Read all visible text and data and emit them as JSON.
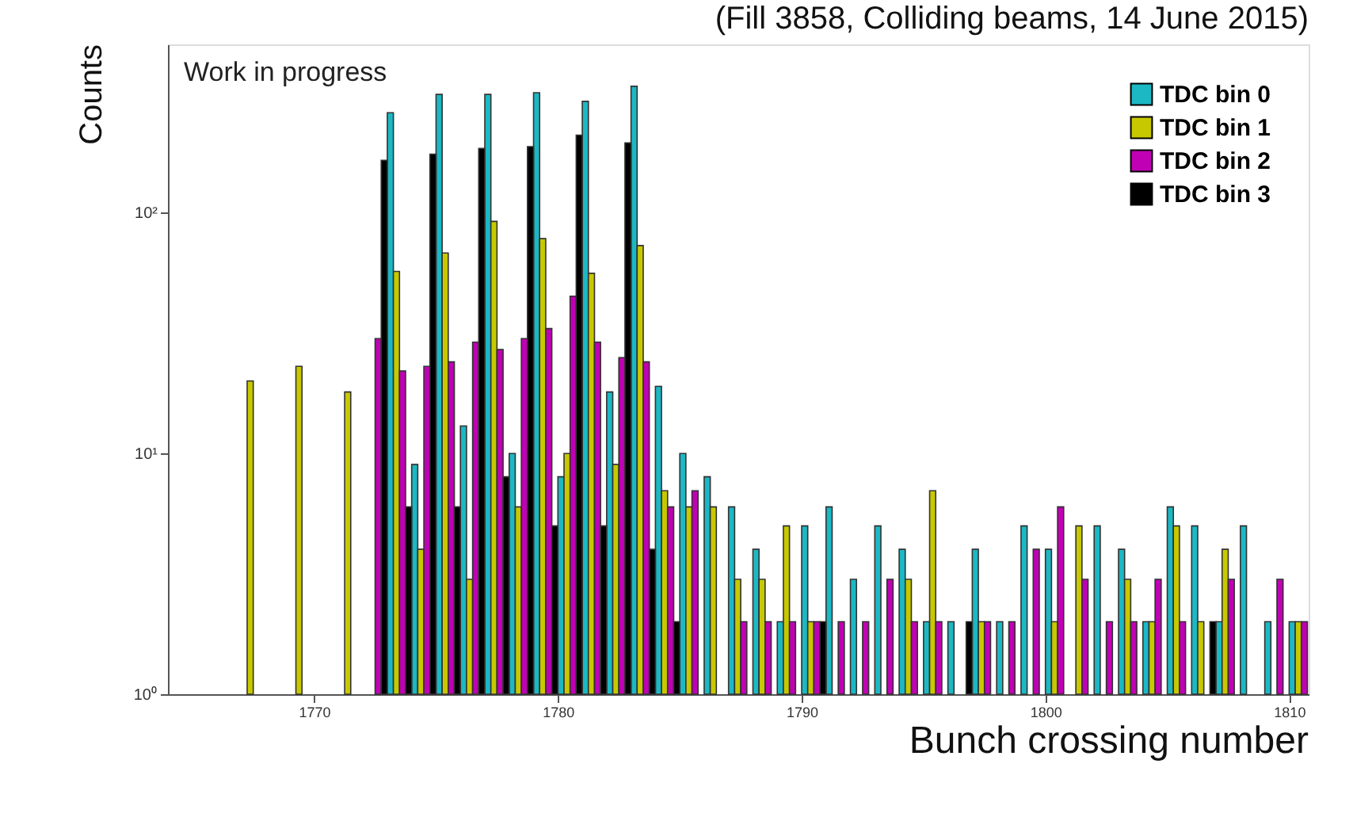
{
  "chart_data": {
    "type": "bar",
    "title": "(Fill 3858, Colliding beams, 14 June 2015)",
    "xlabel": "Bunch crossing number",
    "ylabel": "Counts",
    "annotations": [
      "Work in progress"
    ],
    "xlim": [
      1764,
      1810.8
    ],
    "xticks": [
      1770,
      1780,
      1790,
      1800,
      1810
    ],
    "ylim": [
      1,
      500
    ],
    "yticks": [
      {
        "value": 1,
        "label": "10⁰"
      },
      {
        "value": 10,
        "label": "10¹"
      },
      {
        "value": 100,
        "label": "10²"
      }
    ],
    "log": "y",
    "grid": false,
    "legend": "top right",
    "series": [
      {
        "name": "TDC bin 0",
        "color": "#1cb8c4",
        "x": [
          1773.125,
          1774.125,
          1775.125,
          1776.125,
          1777.125,
          1778.125,
          1779.125,
          1780.125,
          1781.125,
          1782.125,
          1783.125,
          1784.125,
          1785.125,
          1786.125,
          1787.125,
          1788.125,
          1789.125,
          1790.125,
          1791.125,
          1792.125,
          1793.125,
          1794.125,
          1795.125,
          1796.125,
          1797.125,
          1798.125,
          1799.125,
          1800.125,
          1802.125,
          1803.125,
          1804.125,
          1805.125,
          1806.125,
          1807.125,
          1808.125,
          1809.125,
          1810.125
        ],
        "values": [
          260,
          9,
          310,
          13,
          310,
          10,
          315,
          8,
          290,
          18,
          335,
          19,
          10,
          8,
          6,
          4,
          2,
          5,
          6,
          3,
          5,
          4,
          2,
          2,
          4,
          2,
          5,
          4,
          5,
          4,
          2,
          6,
          5,
          2,
          5,
          2,
          2
        ]
      },
      {
        "name": "TDC bin 1",
        "color": "#c8c800",
        "x": [
          1767.375,
          1769.375,
          1771.375,
          1773.375,
          1774.375,
          1775.375,
          1776.375,
          1777.375,
          1778.375,
          1779.375,
          1780.375,
          1781.375,
          1782.375,
          1783.375,
          1784.375,
          1785.375,
          1786.375,
          1787.375,
          1788.375,
          1789.375,
          1790.375,
          1794.375,
          1795.375,
          1797.375,
          1800.375,
          1801.375,
          1803.375,
          1804.375,
          1805.375,
          1806.375,
          1807.375,
          1810.375
        ],
        "values": [
          20,
          23,
          18,
          57,
          4,
          68,
          3,
          92,
          6,
          78,
          10,
          56,
          9,
          73,
          7,
          6,
          6,
          3,
          3,
          5,
          2,
          3,
          7,
          2,
          2,
          5,
          3,
          2,
          5,
          2,
          4,
          2
        ]
      },
      {
        "name": "TDC bin 2",
        "color": "#c000b4",
        "x": [
          1772.625,
          1773.625,
          1774.625,
          1775.625,
          1776.625,
          1777.625,
          1778.625,
          1779.625,
          1780.625,
          1781.625,
          1782.625,
          1783.625,
          1784.625,
          1785.625,
          1787.625,
          1788.625,
          1789.625,
          1790.625,
          1791.625,
          1792.625,
          1793.625,
          1794.625,
          1795.625,
          1797.625,
          1798.625,
          1799.625,
          1800.625,
          1801.625,
          1802.625,
          1803.625,
          1804.625,
          1805.625,
          1807.625,
          1809.625,
          1810.625
        ],
        "values": [
          30,
          22,
          23,
          24,
          29,
          27,
          30,
          33,
          45,
          29,
          25,
          24,
          6,
          7,
          2,
          2,
          2,
          2,
          2,
          2,
          3,
          2,
          2,
          2,
          2,
          4,
          6,
          3,
          2,
          2,
          3,
          2,
          3,
          3,
          2
        ]
      },
      {
        "name": "TDC bin 3",
        "color": "#000000",
        "x": [
          1772.875,
          1773.875,
          1774.875,
          1775.875,
          1776.875,
          1777.875,
          1778.875,
          1779.875,
          1780.875,
          1781.875,
          1782.875,
          1783.875,
          1784.875,
          1790.875,
          1796.875,
          1806.875
        ],
        "values": [
          165,
          6,
          175,
          6,
          185,
          8,
          188,
          5,
          210,
          5,
          195,
          4,
          2,
          2,
          2,
          2
        ]
      }
    ]
  }
}
